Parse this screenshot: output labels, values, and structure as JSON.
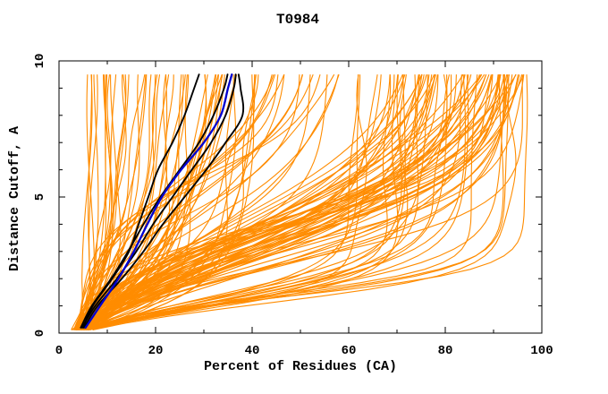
{
  "chart_data": {
    "type": "line",
    "title": "T0984",
    "xlabel": "Percent of Residues (CA)",
    "ylabel": "Distance Cutoff, A",
    "xlim": [
      0,
      100
    ],
    "ylim": [
      0,
      10
    ],
    "grid": false,
    "legend": null,
    "x_major_ticks": [
      0,
      20,
      40,
      60,
      80,
      100
    ],
    "x_minor_ticks": [
      10,
      30,
      50,
      70,
      90
    ],
    "y_major_ticks": [
      0,
      5,
      10
    ],
    "y_minor_ticks": [
      1,
      2,
      3,
      4,
      6,
      7,
      8,
      9
    ],
    "cutoff_range": [
      0.12,
      9.5
    ],
    "highlight_cutoffs": [
      0.2,
      1,
      2,
      3,
      4,
      5,
      6,
      7,
      8,
      9,
      9.5
    ],
    "highlight_series": [
      {
        "name": "black-model-1",
        "color_key": "black",
        "percents": [
          5.0,
          7.0,
          11.0,
          14.5,
          16.5,
          18.5,
          20.5,
          23.5,
          26.0,
          28.0,
          29.0
        ]
      },
      {
        "name": "black-model-2",
        "color_key": "black",
        "percents": [
          4.8,
          7.5,
          12.0,
          16.0,
          19.5,
          23.5,
          27.5,
          31.5,
          34.5,
          36.2,
          36.6
        ]
      },
      {
        "name": "black-model-3",
        "color_key": "black",
        "percents": [
          5.2,
          8.0,
          13.0,
          17.5,
          21.5,
          26.0,
          30.5,
          34.5,
          38.0,
          37.6,
          37.2
        ]
      },
      {
        "name": "black-model-4",
        "color_key": "black",
        "percents": [
          4.5,
          6.8,
          10.8,
          14.3,
          17.5,
          21.0,
          25.0,
          29.0,
          32.0,
          34.2,
          34.9
        ]
      },
      {
        "name": "blue-model",
        "color_key": "blue",
        "percents": [
          5.5,
          8.5,
          12.3,
          15.5,
          18.3,
          21.3,
          25.3,
          30.0,
          33.5,
          35.0,
          35.8
        ]
      }
    ],
    "server_models": {
      "count": 152,
      "color_key": "orange",
      "note": "approximately 150 orange server-model curves; procedurally approximated families of percent-vs-cutoff profiles",
      "seed": 20984,
      "samples_per_curve": 39,
      "families": [
        {
          "name": "poor-steep",
          "count": 52,
          "shape": "satexp",
          "p0": [
            2.5,
            6.5
          ],
          "pf": [
            6,
            43
          ],
          "pf_power": 1.5,
          "tau": [
            1.0,
            5.0
          ]
        },
        {
          "name": "mid-diagonal",
          "count": 14,
          "shape": "logistic",
          "p0": [
            3.0,
            6.0
          ],
          "pf": [
            44,
            58
          ],
          "pf_power": 1.0,
          "c0": [
            3.0,
            6.0
          ],
          "w": [
            1.0,
            2.0
          ]
        },
        {
          "name": "good-sweep",
          "count": 66,
          "shape": "logistic",
          "p0": [
            3.0,
            6.0
          ],
          "pf": [
            55,
            97
          ],
          "pf_power": 0.55,
          "c0": [
            2.0,
            4.2
          ],
          "w": [
            1.0,
            2.2
          ]
        },
        {
          "name": "fast-riser",
          "count": 20,
          "shape": "logistic",
          "p0": [
            3.5,
            7.0
          ],
          "pf": [
            60,
            97
          ],
          "pf_power": 0.7,
          "c0": [
            0.8,
            1.4
          ],
          "w": [
            0.45,
            0.9
          ]
        }
      ]
    },
    "colors": {
      "orange": "#FF8C00",
      "black": "#000000",
      "blue": "#0000D0",
      "frame": "#000000",
      "background": "#FFFFFF"
    }
  }
}
